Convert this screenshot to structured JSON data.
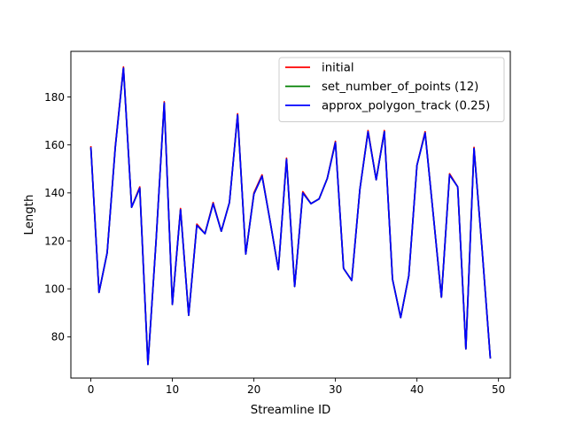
{
  "chart_data": {
    "type": "line",
    "title": "",
    "xlabel": "Streamline ID",
    "ylabel": "Length",
    "xlim": [
      -2.45,
      51.45
    ],
    "ylim": [
      62.8,
      199.0
    ],
    "xticks": [
      0,
      10,
      20,
      30,
      40,
      50
    ],
    "yticks": [
      80,
      100,
      120,
      140,
      160,
      180
    ],
    "xtick_labels": [
      "0",
      "10",
      "20",
      "30",
      "40",
      "50"
    ],
    "ytick_labels": [
      "80",
      "100",
      "120",
      "140",
      "160",
      "180"
    ],
    "grid": false,
    "legend_position": "top-right",
    "x": [
      0,
      1,
      2,
      3,
      4,
      5,
      6,
      7,
      8,
      9,
      10,
      11,
      12,
      13,
      14,
      15,
      16,
      17,
      18,
      19,
      20,
      21,
      22,
      23,
      24,
      25,
      26,
      27,
      28,
      29,
      30,
      31,
      32,
      33,
      34,
      35,
      36,
      37,
      38,
      39,
      40,
      41,
      42,
      43,
      44,
      45,
      46,
      47,
      48,
      49
    ],
    "series": [
      {
        "name": "initial",
        "color": "#ff0000",
        "values": [
          159.5,
          98.5,
          115,
          159.5,
          192.5,
          134,
          142.5,
          68.5,
          120,
          178,
          93.5,
          133.5,
          89,
          127,
          123,
          136,
          124,
          136,
          173,
          114.5,
          140,
          147.5,
          128,
          108,
          154.5,
          101,
          140.5,
          135.5,
          137.5,
          146,
          161.5,
          108.5,
          103.5,
          141.5,
          166,
          145.5,
          166,
          104,
          88,
          105.5,
          151.5,
          165.5,
          131,
          96.5,
          148,
          142.5,
          75,
          159,
          116,
          71
        ]
      },
      {
        "name": "set_number_of_points (12)",
        "color": "#008000",
        "values": [
          159,
          98.5,
          115,
          159,
          192,
          134,
          142,
          68.5,
          120,
          177.5,
          93.5,
          133,
          89,
          126.5,
          123,
          135.5,
          124,
          136,
          172.5,
          114.5,
          139.5,
          147,
          128,
          108,
          154,
          101,
          140,
          135.5,
          137.5,
          146,
          161,
          108.5,
          103.5,
          141.5,
          165.5,
          145.5,
          165.5,
          104,
          88,
          105.5,
          151.5,
          165,
          131,
          96.5,
          147.5,
          142.5,
          75,
          158.5,
          116,
          71
        ]
      },
      {
        "name": "approx_polygon_track (0.25)",
        "color": "#0000ff",
        "values": [
          159,
          98.5,
          115,
          159,
          192,
          134,
          142,
          68.5,
          120,
          177.5,
          93.5,
          133,
          89,
          126.5,
          123,
          135.5,
          124,
          136,
          172.5,
          114.5,
          139.5,
          147,
          128,
          108,
          154,
          101,
          140,
          135.5,
          137.5,
          146,
          161,
          108.5,
          103.5,
          141.5,
          165.5,
          145.5,
          165.5,
          104,
          88,
          105.5,
          151.5,
          165,
          131,
          96.5,
          147.5,
          142.5,
          75,
          158.5,
          116,
          71
        ]
      }
    ]
  }
}
